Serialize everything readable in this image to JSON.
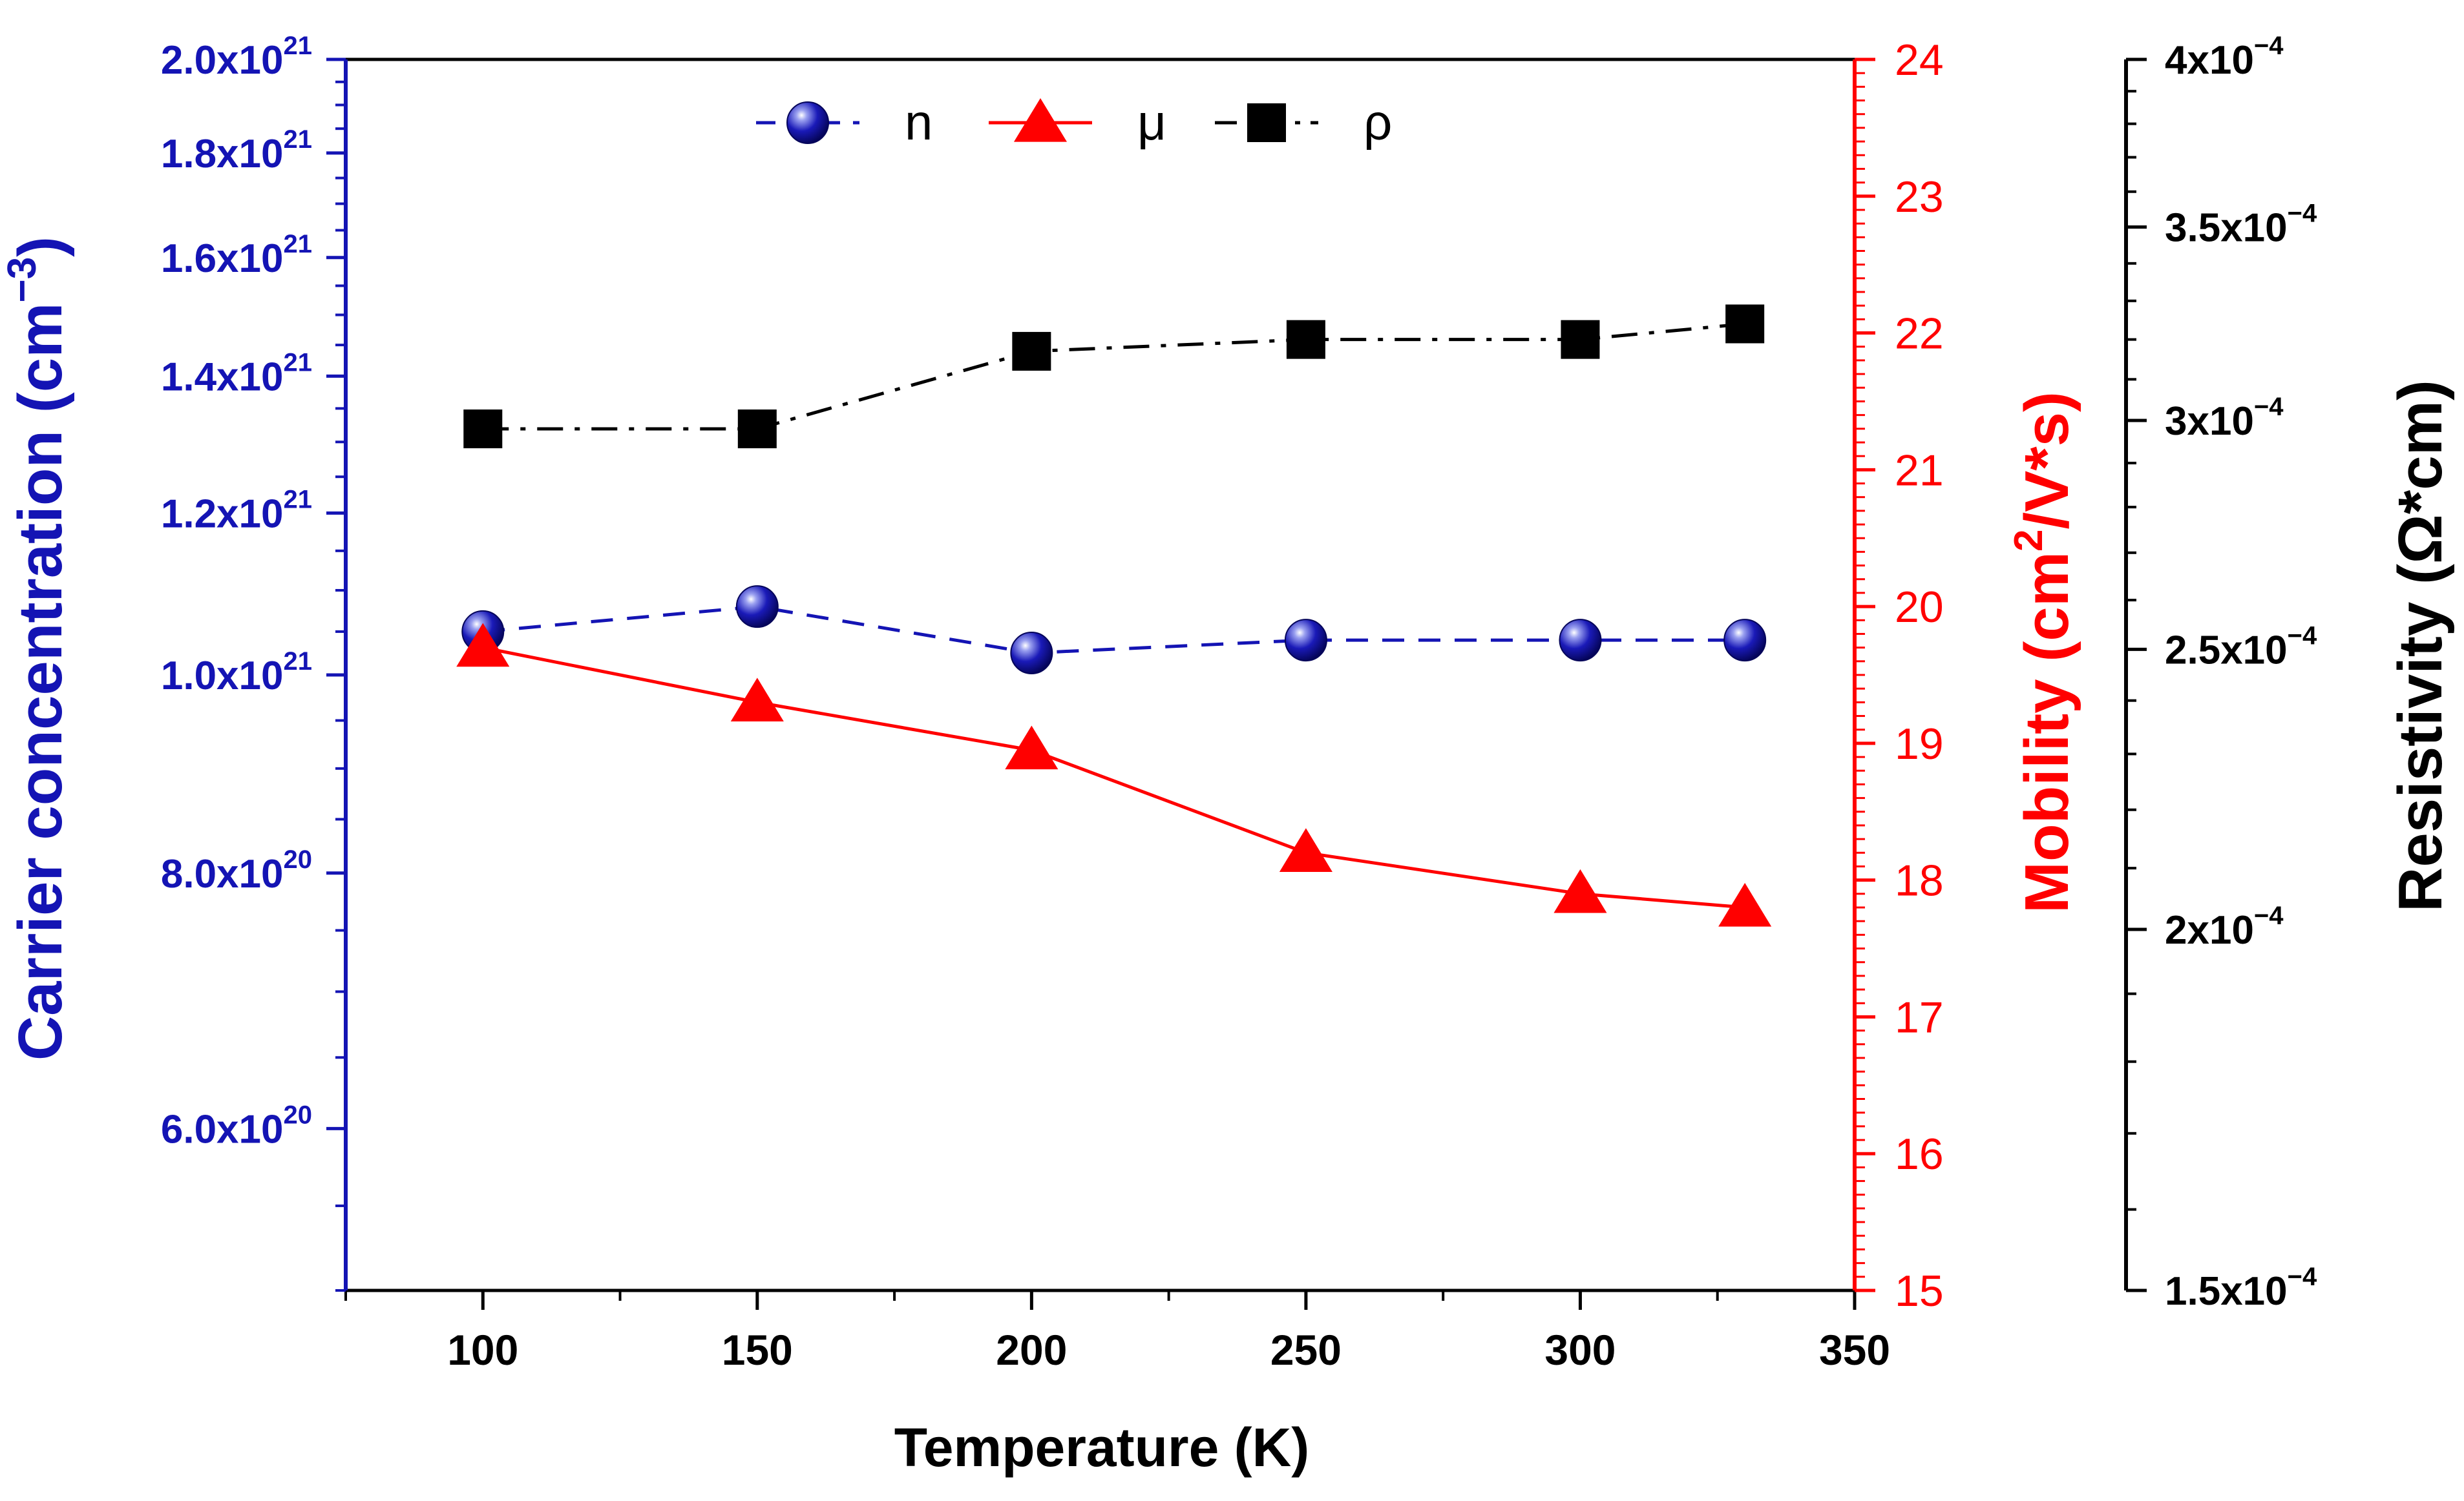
{
  "chart_data": {
    "type": "line",
    "title": "",
    "xlabel": "Temperature (K)",
    "x": [
      100,
      150,
      200,
      250,
      300,
      330
    ],
    "xlim": [
      75,
      350
    ],
    "xticks": [
      100,
      150,
      200,
      250,
      300,
      350
    ],
    "series": [
      {
        "key": "n",
        "name": "n",
        "axis": "left",
        "values": [
          1.05e+21,
          1.08e+21,
          1.025e+21,
          1.04e+21,
          1.04e+21,
          1.04e+21
        ],
        "color": "#1414b4",
        "marker": "sphere",
        "linestyle": "dashed"
      },
      {
        "key": "mu",
        "name": "μ",
        "axis": "right",
        "values": [
          19.7,
          19.3,
          18.95,
          18.2,
          17.9,
          17.8
        ],
        "color": "#ff0000",
        "marker": "triangle",
        "linestyle": "solid"
      },
      {
        "key": "rho",
        "name": "ρ",
        "axis": "resistivity",
        "values": [
          0.000298,
          0.000298,
          0.000317,
          0.00032,
          0.00032,
          0.000324
        ],
        "color": "#000000",
        "marker": "square",
        "linestyle": "dash-dot"
      }
    ],
    "axes": {
      "left": {
        "label_main": "Carrier concentration (cm",
        "label_sup": "−3",
        "label_end": ")",
        "scale": "log",
        "ylim": [
          5e+20,
          2e+21
        ],
        "color": "#1414b4",
        "ticks": [
          {
            "value": 2e+21,
            "mant": "2.0x10",
            "exp": "21"
          },
          {
            "value": 1.8e+21,
            "mant": "1.8x10",
            "exp": "21"
          },
          {
            "value": 1.6e+21,
            "mant": "1.6x10",
            "exp": "21"
          },
          {
            "value": 1.4e+21,
            "mant": "1.4x10",
            "exp": "21"
          },
          {
            "value": 1.2e+21,
            "mant": "1.2x10",
            "exp": "21"
          },
          {
            "value": 1e+21,
            "mant": "1.0x10",
            "exp": "21"
          },
          {
            "value": 8e+20,
            "mant": "8.0x10",
            "exp": "20"
          },
          {
            "value": 6e+20,
            "mant": "6.0x10",
            "exp": "20"
          }
        ]
      },
      "right": {
        "label_main": "Mobility (cm",
        "label_sup": "2",
        "label_end": "/V*s)",
        "scale": "linear",
        "ylim": [
          15,
          24
        ],
        "ticks": [
          15,
          16,
          17,
          18,
          19,
          20,
          21,
          22,
          23,
          24
        ],
        "color": "#ff0000"
      },
      "resistivity": {
        "label_main": "Resistivity (Ω*cm)",
        "scale": "log",
        "ylim": [
          0.00015,
          0.0004
        ],
        "color": "#000000",
        "ticks": [
          {
            "value": 0.0004,
            "mant": "4x10",
            "exp": "−4"
          },
          {
            "value": 0.00035,
            "mant": "3.5x10",
            "exp": "−4"
          },
          {
            "value": 0.0003,
            "mant": "3x10",
            "exp": "−4"
          },
          {
            "value": 0.00025,
            "mant": "2.5x10",
            "exp": "−4"
          },
          {
            "value": 0.0002,
            "mant": "2x10",
            "exp": "−4"
          },
          {
            "value": 0.00015,
            "mant": "1.5x10",
            "exp": "−4"
          }
        ]
      }
    },
    "legend": {
      "placement": "top-center",
      "entries": [
        "n",
        "μ",
        "ρ"
      ]
    }
  }
}
